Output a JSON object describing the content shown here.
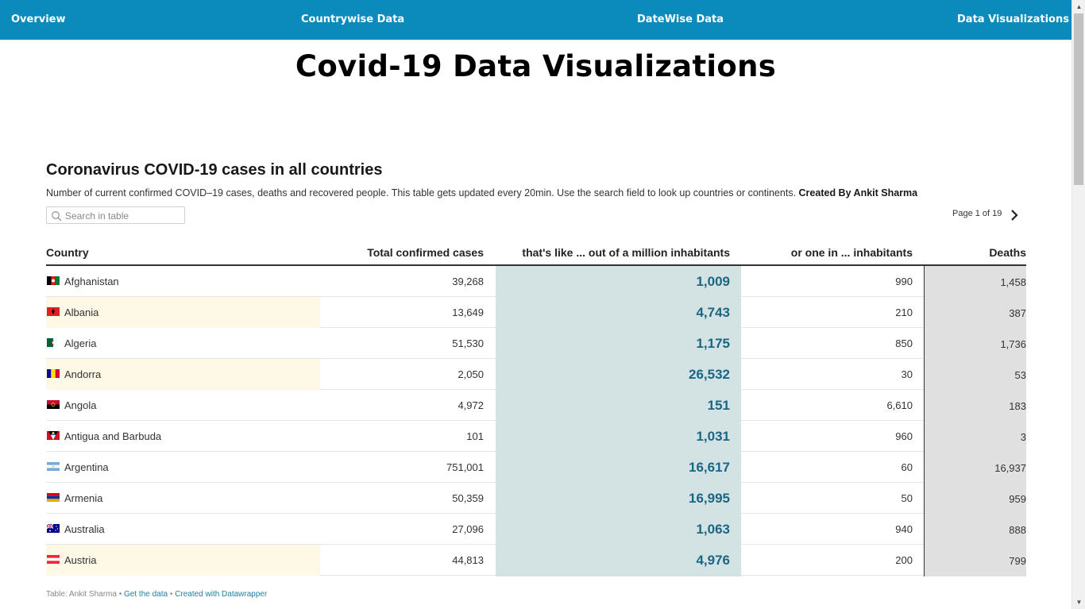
{
  "nav": {
    "items": [
      "Overview",
      "Countrywise Data",
      "DateWise Data",
      "Data Visualizations"
    ]
  },
  "page": {
    "title": "Covid-19 Data Visualizations"
  },
  "widget": {
    "title": "Coronavirus COVID-19 cases in all countries",
    "description": "Number of current confirmed COVID–19 cases, deaths and recovered people. This table gets updated every 20min. Use the search field to look up countries or continents.",
    "credit": "Created By Ankit Sharma",
    "search_placeholder": "Search in table",
    "pager": "Page 1 of 19",
    "next_icon": "chevron-right-icon"
  },
  "table": {
    "headers": [
      "Country",
      "Total confirmed cases",
      "that's like ... out of a million inhabitants",
      "or one in ... inhabitants",
      "Deaths"
    ],
    "rows": [
      {
        "country": "Afghanistan",
        "total": "39,268",
        "per_million": "1,009",
        "one_in": "990",
        "deaths": "1,458",
        "highlight": false,
        "flag": "af"
      },
      {
        "country": "Albania",
        "total": "13,649",
        "per_million": "4,743",
        "one_in": "210",
        "deaths": "387",
        "highlight": true,
        "flag": "al"
      },
      {
        "country": "Algeria",
        "total": "51,530",
        "per_million": "1,175",
        "one_in": "850",
        "deaths": "1,736",
        "highlight": false,
        "flag": "dz"
      },
      {
        "country": "Andorra",
        "total": "2,050",
        "per_million": "26,532",
        "one_in": "30",
        "deaths": "53",
        "highlight": true,
        "flag": "ad"
      },
      {
        "country": "Angola",
        "total": "4,972",
        "per_million": "151",
        "one_in": "6,610",
        "deaths": "183",
        "highlight": false,
        "flag": "ao"
      },
      {
        "country": "Antigua and Barbuda",
        "total": "101",
        "per_million": "1,031",
        "one_in": "960",
        "deaths": "3",
        "highlight": false,
        "flag": "ag"
      },
      {
        "country": "Argentina",
        "total": "751,001",
        "per_million": "16,617",
        "one_in": "60",
        "deaths": "16,937",
        "highlight": false,
        "flag": "ar"
      },
      {
        "country": "Armenia",
        "total": "50,359",
        "per_million": "16,995",
        "one_in": "50",
        "deaths": "959",
        "highlight": false,
        "flag": "am"
      },
      {
        "country": "Australia",
        "total": "27,096",
        "per_million": "1,063",
        "one_in": "940",
        "deaths": "888",
        "highlight": false,
        "flag": "au"
      },
      {
        "country": "Austria",
        "total": "44,813",
        "per_million": "4,976",
        "one_in": "200",
        "deaths": "799",
        "highlight": true,
        "flag": "at"
      }
    ]
  },
  "footer": {
    "source": "Table: Ankit Sharma",
    "sep": "•",
    "get_data": "Get the data",
    "created_with": "Created with Datawrapper"
  },
  "colors": {
    "nav_bg": "#0a8bbb",
    "per_million_bg": "#d3e3e3",
    "per_million_text": "#1b6585",
    "deaths_bg": "#e0e0e0",
    "highlight_bg": "#fef8e6"
  }
}
